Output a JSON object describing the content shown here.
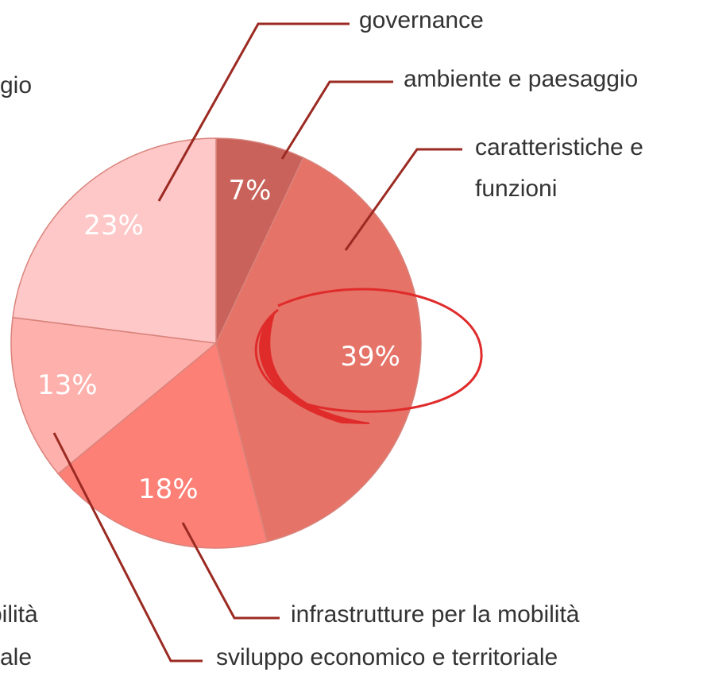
{
  "chart_data": {
    "type": "pie",
    "categories": [
      "ambiente e paesaggio",
      "caratteristiche e funzioni",
      "infrastrutture per la mobilità",
      "sviluppo economico e territoriale",
      "governance"
    ],
    "values": [
      7,
      39,
      18,
      13,
      23
    ],
    "value_labels": [
      "7%",
      "39%",
      "18%",
      "13%",
      "23%"
    ],
    "colors": [
      "#c8625a",
      "#e57368",
      "#fd8077",
      "#fdb0ac",
      "#fec8c8"
    ],
    "cropped_texts": [
      "gio",
      "bilità",
      "ale"
    ]
  }
}
